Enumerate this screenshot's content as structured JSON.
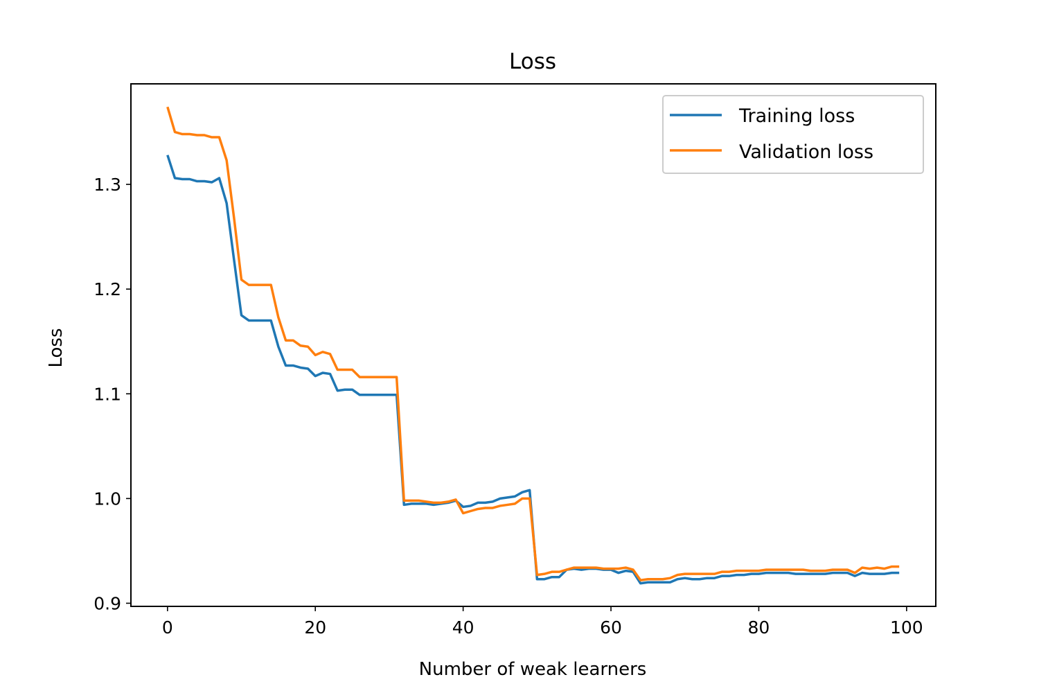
{
  "chart_data": {
    "type": "line",
    "title": "Loss",
    "xlabel": "Number of weak learners",
    "ylabel": "Loss",
    "xlim": [
      -4.95,
      103.95
    ],
    "ylim": [
      0.897,
      1.396
    ],
    "xticks": [
      0,
      20,
      40,
      60,
      80,
      100
    ],
    "yticks": [
      0.9,
      1.0,
      1.1,
      1.2,
      1.3
    ],
    "ytick_labels": [
      "0.9",
      "1.0",
      "1.1",
      "1.2",
      "1.3"
    ],
    "grid": false,
    "legend_position": "top-right",
    "x": [
      0,
      1,
      2,
      3,
      4,
      5,
      6,
      7,
      8,
      9,
      10,
      11,
      12,
      13,
      14,
      15,
      16,
      17,
      18,
      19,
      20,
      21,
      22,
      23,
      24,
      25,
      26,
      27,
      28,
      29,
      30,
      31,
      32,
      33,
      34,
      35,
      36,
      37,
      38,
      39,
      40,
      41,
      42,
      43,
      44,
      45,
      46,
      47,
      48,
      49,
      50,
      51,
      52,
      53,
      54,
      55,
      56,
      57,
      58,
      59,
      60,
      61,
      62,
      63,
      64,
      65,
      66,
      67,
      68,
      69,
      70,
      71,
      72,
      73,
      74,
      75,
      76,
      77,
      78,
      79,
      80,
      81,
      82,
      83,
      84,
      85,
      86,
      87,
      88,
      89,
      90,
      91,
      92,
      93,
      94,
      95,
      96,
      97,
      98,
      99
    ],
    "series": [
      {
        "name": "Training loss",
        "color": "#1f77b4",
        "values": [
          1.328,
          1.306,
          1.305,
          1.305,
          1.303,
          1.303,
          1.302,
          1.306,
          1.282,
          1.228,
          1.175,
          1.17,
          1.17,
          1.17,
          1.17,
          1.145,
          1.127,
          1.127,
          1.125,
          1.124,
          1.117,
          1.12,
          1.119,
          1.103,
          1.104,
          1.104,
          1.099,
          1.099,
          1.099,
          1.099,
          1.099,
          1.099,
          0.994,
          0.995,
          0.995,
          0.995,
          0.994,
          0.995,
          0.996,
          0.998,
          0.992,
          0.993,
          0.996,
          0.996,
          0.997,
          1.0,
          1.001,
          1.002,
          1.006,
          1.008,
          0.923,
          0.923,
          0.925,
          0.925,
          0.932,
          0.933,
          0.932,
          0.933,
          0.933,
          0.932,
          0.932,
          0.929,
          0.931,
          0.93,
          0.919,
          0.92,
          0.92,
          0.92,
          0.92,
          0.923,
          0.924,
          0.923,
          0.923,
          0.924,
          0.924,
          0.926,
          0.926,
          0.927,
          0.927,
          0.928,
          0.928,
          0.929,
          0.929,
          0.929,
          0.929,
          0.928,
          0.928,
          0.928,
          0.928,
          0.928,
          0.929,
          0.929,
          0.929,
          0.926,
          0.929,
          0.928,
          0.928,
          0.928,
          0.929,
          0.929
        ]
      },
      {
        "name": "Validation loss",
        "color": "#ff7f0e",
        "values": [
          1.374,
          1.35,
          1.348,
          1.348,
          1.347,
          1.347,
          1.345,
          1.345,
          1.323,
          1.268,
          1.209,
          1.204,
          1.204,
          1.204,
          1.204,
          1.173,
          1.151,
          1.151,
          1.146,
          1.145,
          1.137,
          1.14,
          1.138,
          1.123,
          1.123,
          1.123,
          1.116,
          1.116,
          1.116,
          1.116,
          1.116,
          1.116,
          0.998,
          0.998,
          0.998,
          0.997,
          0.996,
          0.996,
          0.997,
          0.999,
          0.986,
          0.988,
          0.99,
          0.991,
          0.991,
          0.993,
          0.994,
          0.995,
          1.0,
          1.0,
          0.927,
          0.928,
          0.93,
          0.93,
          0.932,
          0.934,
          0.934,
          0.934,
          0.934,
          0.933,
          0.933,
          0.933,
          0.934,
          0.932,
          0.922,
          0.923,
          0.923,
          0.923,
          0.924,
          0.927,
          0.928,
          0.928,
          0.928,
          0.928,
          0.928,
          0.93,
          0.93,
          0.931,
          0.931,
          0.931,
          0.931,
          0.932,
          0.932,
          0.932,
          0.932,
          0.932,
          0.932,
          0.931,
          0.931,
          0.931,
          0.932,
          0.932,
          0.932,
          0.929,
          0.934,
          0.933,
          0.934,
          0.933,
          0.935,
          0.935
        ]
      }
    ]
  }
}
